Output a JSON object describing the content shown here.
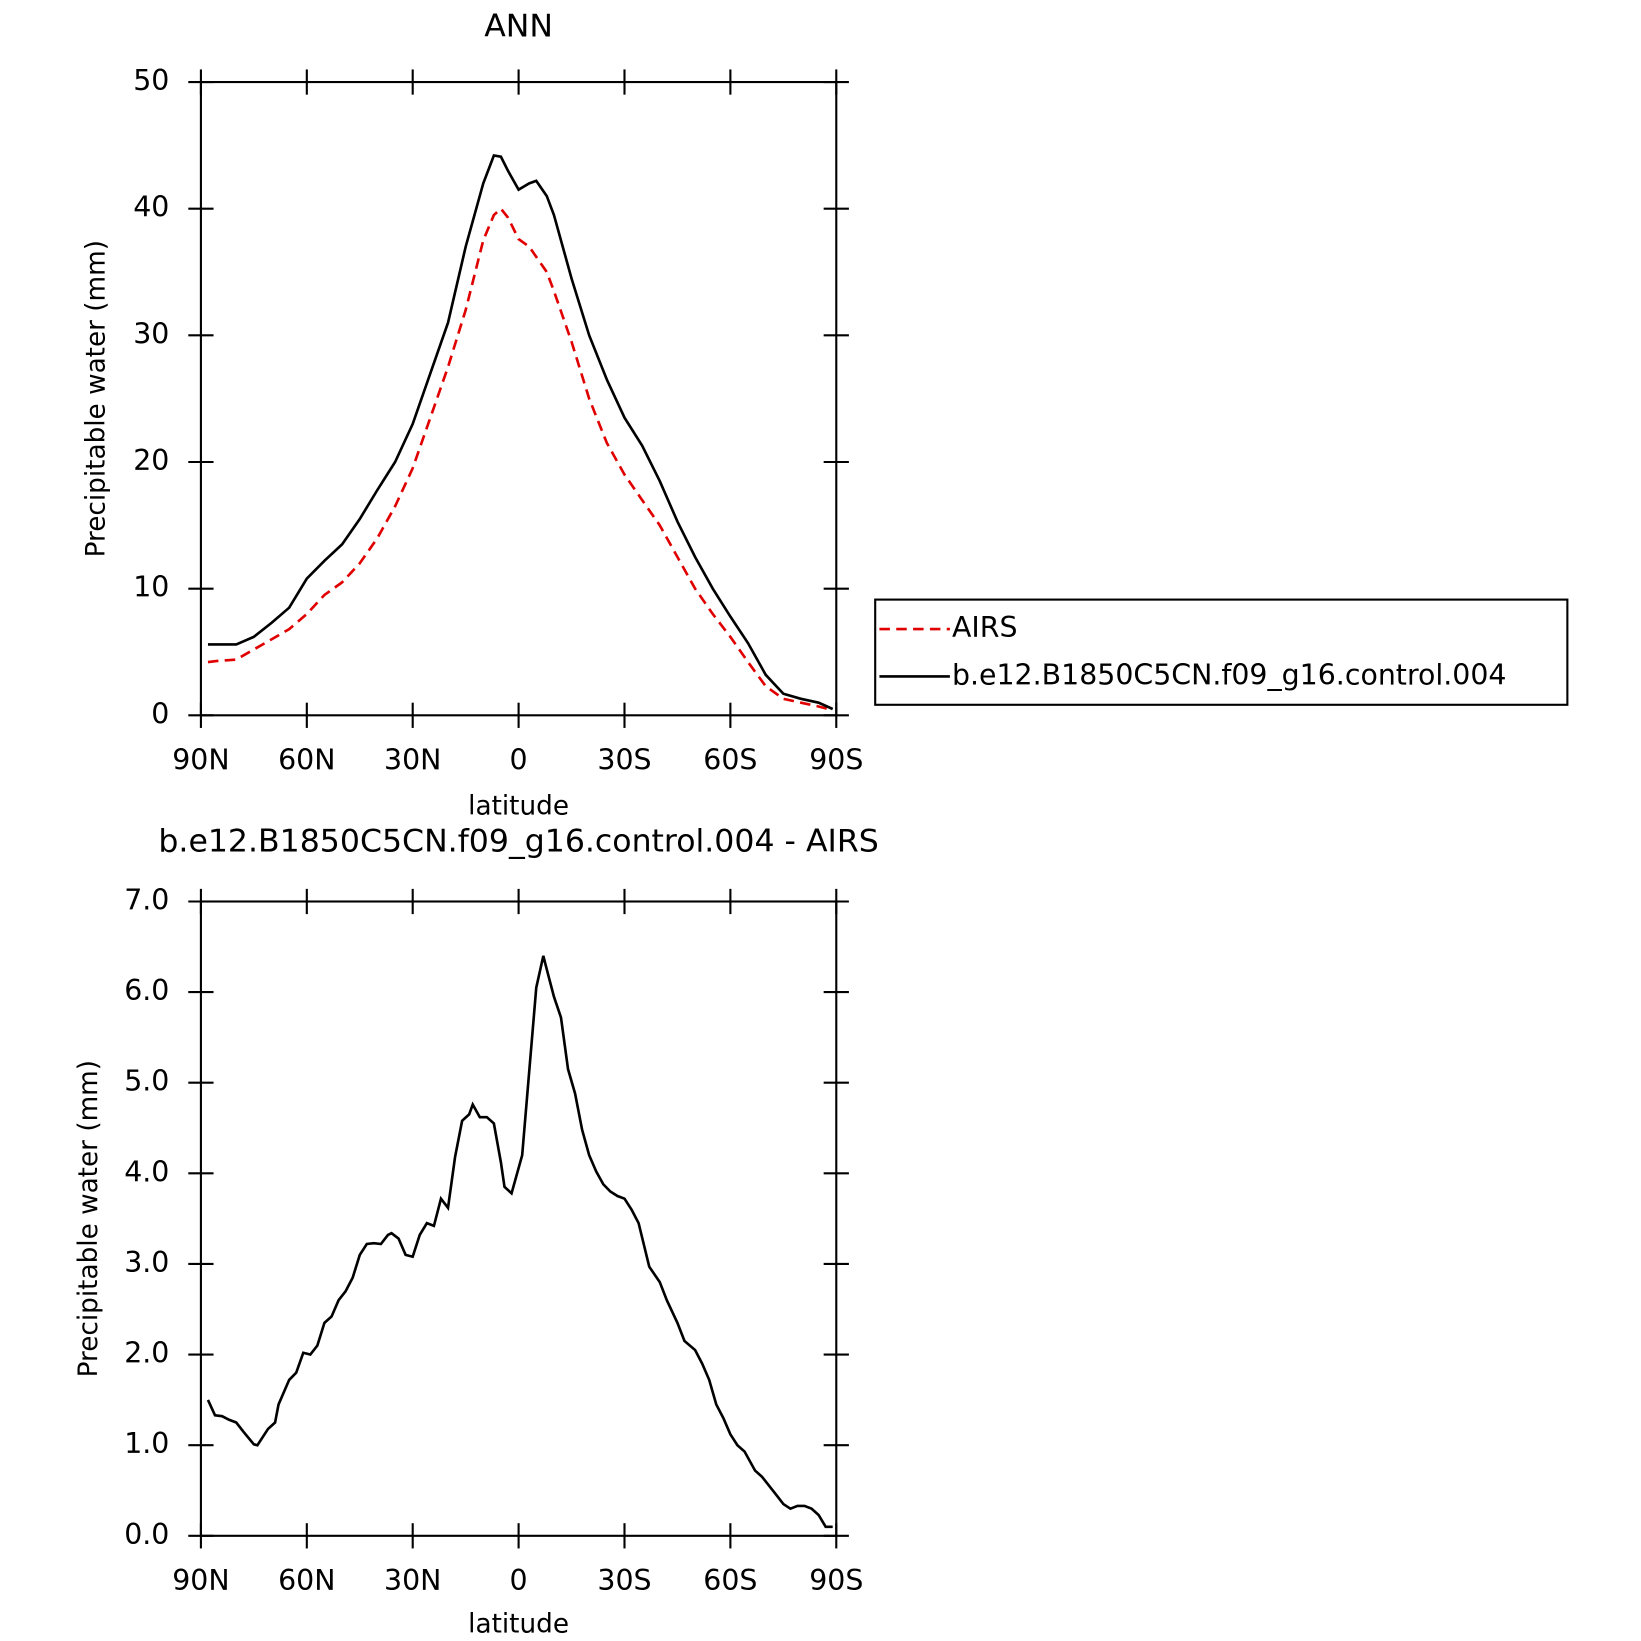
{
  "chart_data": [
    {
      "type": "line",
      "title": "ANN",
      "x_label": "latitude",
      "y_label": "Precipitable water (mm)",
      "x": [
        88,
        85,
        80,
        75,
        70,
        65,
        60,
        55,
        50,
        45,
        40,
        35,
        30,
        25,
        20,
        15,
        10,
        7,
        5,
        3,
        0,
        -3,
        -5,
        -8,
        -10,
        -15,
        -20,
        -25,
        -30,
        -35,
        -40,
        -45,
        -50,
        -55,
        -60,
        -65,
        -70,
        -75,
        -80,
        -85,
        -89
      ],
      "series": [
        {
          "name": "AIRS",
          "color": "#e00000",
          "line_style": "dashed",
          "values": [
            4.2,
            4.3,
            4.4,
            5.2,
            6,
            6.8,
            8,
            9.5,
            10.5,
            12,
            14,
            16.5,
            19.5,
            23.5,
            27.5,
            32,
            37.5,
            39.5,
            40,
            39.3,
            37.6,
            37,
            36.2,
            35,
            33.5,
            29.5,
            25,
            21.5,
            19,
            17,
            15,
            12.5,
            10,
            8,
            6.2,
            4.2,
            2.3,
            1.3,
            1,
            0.7,
            0.4
          ]
        },
        {
          "name": "b.e12.B1850C5CN.f09_g16.control.004",
          "color": "#000000",
          "line_style": "solid",
          "values": [
            5.6,
            5.6,
            5.6,
            6.2,
            7.3,
            8.5,
            10.8,
            12.2,
            13.5,
            15.5,
            17.8,
            20,
            23,
            27,
            31,
            37,
            42,
            44.2,
            44.1,
            43,
            41.5,
            42,
            42.2,
            41,
            39.5,
            34.5,
            30,
            26.5,
            23.5,
            21.3,
            18.5,
            15.3,
            12.5,
            10,
            7.8,
            5.7,
            3.2,
            1.7,
            1.3,
            1,
            0.5
          ]
        }
      ],
      "xlim": [
        90,
        -90
      ],
      "xticks": [
        {
          "value": 90,
          "label": "90N"
        },
        {
          "value": 60,
          "label": "60N"
        },
        {
          "value": 30,
          "label": "30N"
        },
        0,
        {
          "value": -30,
          "label": "30S"
        },
        {
          "value": -60,
          "label": "60S"
        },
        {
          "value": -90,
          "label": "90S"
        }
      ],
      "ylim": [
        0,
        50
      ],
      "yticks": [
        0,
        10,
        20,
        30,
        40,
        50
      ],
      "legend": "right"
    },
    {
      "type": "line",
      "title": "b.e12.B1850C5CN.f09_g16.control.004 - AIRS",
      "x_label": "latitude",
      "y_label": "Precipitable water (mm)",
      "x": [
        88,
        86,
        84,
        82,
        80,
        78,
        75,
        74,
        71,
        69,
        68,
        65,
        63,
        61,
        59,
        57,
        55,
        53,
        51,
        49,
        47,
        45,
        43,
        41,
        39,
        37,
        36,
        34,
        32,
        30,
        28,
        26,
        24,
        22,
        20,
        18,
        16,
        14,
        13,
        11,
        9,
        7,
        5,
        4,
        2,
        -1,
        -5,
        -7,
        -8,
        -10,
        -12,
        -14,
        -16,
        -18,
        -20,
        -22,
        -24,
        -26,
        -28,
        -30,
        -32,
        -34,
        -37,
        -40,
        -42,
        -45,
        -47,
        -50,
        -52,
        -54,
        -56,
        -58,
        -60,
        -62,
        -64,
        -67,
        -69,
        -73,
        -75,
        -77,
        -79,
        -81,
        -83,
        -85,
        -87,
        -89
      ],
      "values": [
        1.5,
        1.33,
        1.32,
        1.28,
        1.25,
        1.15,
        1.01,
        1.0,
        1.18,
        1.25,
        1.45,
        1.72,
        1.8,
        2.02,
        2.0,
        2.1,
        2.35,
        2.42,
        2.6,
        2.7,
        2.85,
        3.1,
        3.22,
        3.23,
        3.22,
        3.32,
        3.34,
        3.28,
        3.1,
        3.08,
        3.32,
        3.45,
        3.42,
        3.72,
        3.62,
        4.18,
        4.58,
        4.65,
        4.76,
        4.62,
        4.62,
        4.55,
        4.12,
        3.85,
        3.78,
        4.2,
        6.05,
        6.4,
        6.25,
        5.95,
        5.72,
        5.15,
        4.88,
        4.48,
        4.2,
        4.02,
        3.88,
        3.8,
        3.75,
        3.72,
        3.6,
        3.45,
        2.97,
        2.8,
        2.6,
        2.35,
        2.15,
        2.05,
        1.9,
        1.72,
        1.45,
        1.3,
        1.12,
        1.0,
        0.93,
        0.72,
        0.65,
        0.45,
        0.35,
        0.3,
        0.33,
        0.33,
        0.3,
        0.23,
        0.1,
        0.1
      ],
      "color": "#000000",
      "line_style": "solid",
      "xlim": [
        90,
        -90
      ],
      "xticks": [
        {
          "value": 90,
          "label": "90N"
        },
        {
          "value": 60,
          "label": "60N"
        },
        {
          "value": 30,
          "label": "30N"
        },
        0,
        {
          "value": -30,
          "label": "30S"
        },
        {
          "value": -60,
          "label": "60S"
        },
        {
          "value": -90,
          "label": "90S"
        }
      ],
      "ylim": [
        0,
        7
      ],
      "yticks": [
        {
          "value": 0,
          "label": "0.0"
        },
        {
          "value": 1,
          "label": "1.0"
        },
        {
          "value": 2,
          "label": "2.0"
        },
        {
          "value": 3,
          "label": "3.0"
        },
        {
          "value": 4,
          "label": "4.0"
        },
        {
          "value": 5,
          "label": "5.0"
        },
        {
          "value": 6,
          "label": "6.0"
        },
        {
          "value": 7,
          "label": "7.0"
        }
      ]
    }
  ]
}
